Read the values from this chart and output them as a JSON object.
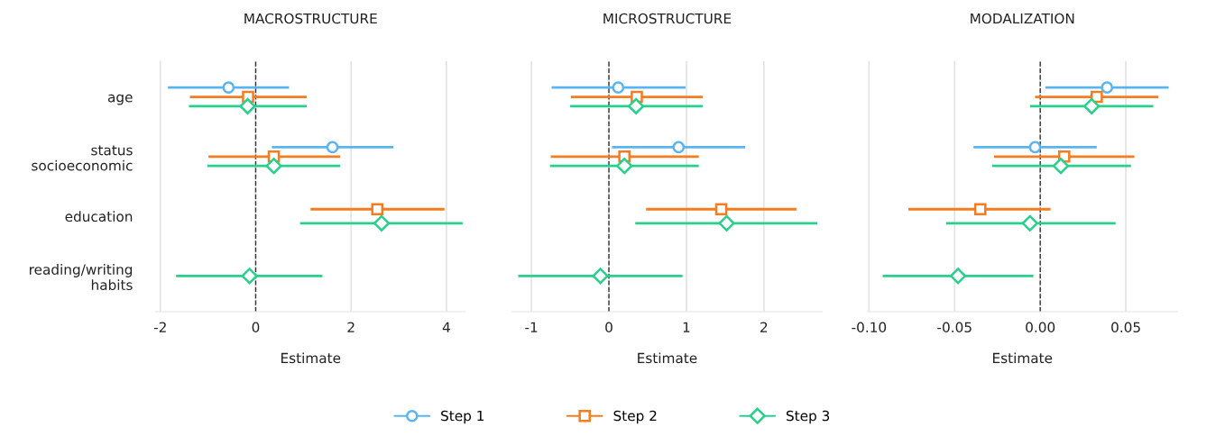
{
  "chart_data": [
    {
      "type": "scatter",
      "orientation": "horizontal",
      "title": "MACROSTRUCTURE",
      "xlabel": "Estimate",
      "categories": [
        "age",
        "status\nsocioeconomic",
        "education",
        "reading/writing\nhabits"
      ],
      "xlim": [
        -2.1,
        4.4
      ],
      "xticks": [
        -2,
        0,
        2,
        4
      ],
      "grid": "x",
      "legend": "bottom",
      "ref_lines": [
        {
          "axis": "x",
          "value": 0,
          "line_style": "dashed",
          "color": "#333333"
        }
      ],
      "series": [
        {
          "name": "Step 1",
          "color": "#5ab4f0",
          "marker": "circle",
          "values": [
            -0.57,
            1.61,
            null,
            null
          ],
          "errors": [
            [
              -1.84,
              0.7
            ],
            [
              0.34,
              2.89
            ],
            null,
            null
          ]
        },
        {
          "name": "Step 2",
          "color": "#f57c1f",
          "marker": "square",
          "values": [
            -0.16,
            0.38,
            2.55,
            null
          ],
          "errors": [
            [
              -1.38,
              1.07
            ],
            [
              -0.99,
              1.77
            ],
            [
              1.15,
              3.96
            ],
            null
          ]
        },
        {
          "name": "Step 3",
          "color": "#27d18b",
          "marker": "diamond",
          "values": [
            -0.17,
            0.38,
            2.64,
            -0.13
          ],
          "errors": [
            [
              -1.4,
              1.07
            ],
            [
              -1.01,
              1.77
            ],
            [
              0.93,
              4.34
            ],
            [
              -1.67,
              1.4
            ]
          ]
        }
      ]
    },
    {
      "type": "scatter",
      "orientation": "horizontal",
      "title": "MICROSTRUCTURE",
      "xlabel": "Estimate",
      "categories": [
        "age",
        "status\nsocioeconomic",
        "education",
        "reading/writing\nhabits"
      ],
      "xlim": [
        -1.25,
        2.75
      ],
      "xticks": [
        -1,
        0,
        1,
        2
      ],
      "grid": "x",
      "tick_labels": "x",
      "ref_lines": [
        {
          "axis": "x",
          "value": 0,
          "line_style": "dashed",
          "color": "#333333"
        }
      ],
      "series": [
        {
          "name": "Step 1",
          "color": "#5ab4f0",
          "marker": "circle",
          "values": [
            0.12,
            0.9,
            null,
            null
          ],
          "errors": [
            [
              -0.74,
              0.99
            ],
            [
              0.04,
              1.76
            ],
            null,
            null
          ]
        },
        {
          "name": "Step 2",
          "color": "#f57c1f",
          "marker": "square",
          "values": [
            0.36,
            0.2,
            1.45,
            null
          ],
          "errors": [
            [
              -0.49,
              1.21
            ],
            [
              -0.75,
              1.16
            ],
            [
              0.48,
              2.42
            ],
            null
          ]
        },
        {
          "name": "Step 3",
          "color": "#27d18b",
          "marker": "diamond",
          "values": [
            0.35,
            0.2,
            1.52,
            -0.11
          ],
          "errors": [
            [
              -0.5,
              1.21
            ],
            [
              -0.76,
              1.16
            ],
            [
              0.34,
              2.69
            ],
            [
              -1.17,
              0.95
            ]
          ]
        }
      ]
    },
    {
      "type": "scatter",
      "orientation": "horizontal",
      "title": "MODALIZATION",
      "xlabel": "Estimate",
      "categories": [
        "age",
        "status\nsocioeconomic",
        "education",
        "reading/writing\nhabits"
      ],
      "xlim": [
        -0.101,
        0.08
      ],
      "xticks": [
        {
          "value": -0.1,
          "label": "-0.10"
        },
        {
          "value": -0.05,
          "label": "-0.05"
        },
        {
          "value": 0,
          "label": "0.00"
        },
        {
          "value": 0.05,
          "label": "0.05"
        }
      ],
      "grid": "x",
      "tick_labels": "x",
      "ref_lines": [
        {
          "axis": "x",
          "value": 0,
          "line_style": "dashed",
          "color": "#333333"
        }
      ],
      "series": [
        {
          "name": "Step 1",
          "color": "#5ab4f0",
          "marker": "circle",
          "values": [
            0.039,
            -0.003,
            null,
            null
          ],
          "errors": [
            [
              0.003,
              0.075
            ],
            [
              -0.039,
              0.033
            ],
            null,
            null
          ]
        },
        {
          "name": "Step 2",
          "color": "#f57c1f",
          "marker": "square",
          "values": [
            0.033,
            0.014,
            -0.035,
            null
          ],
          "errors": [
            [
              -0.003,
              0.069
            ],
            [
              -0.027,
              0.055
            ],
            [
              -0.077,
              0.006
            ],
            null
          ]
        },
        {
          "name": "Step 3",
          "color": "#27d18b",
          "marker": "diamond",
          "values": [
            0.03,
            0.012,
            -0.006,
            -0.048
          ],
          "errors": [
            [
              -0.006,
              0.066
            ],
            [
              -0.028,
              0.053
            ],
            [
              -0.055,
              0.044
            ],
            [
              -0.092,
              -0.004
            ]
          ]
        }
      ]
    }
  ]
}
